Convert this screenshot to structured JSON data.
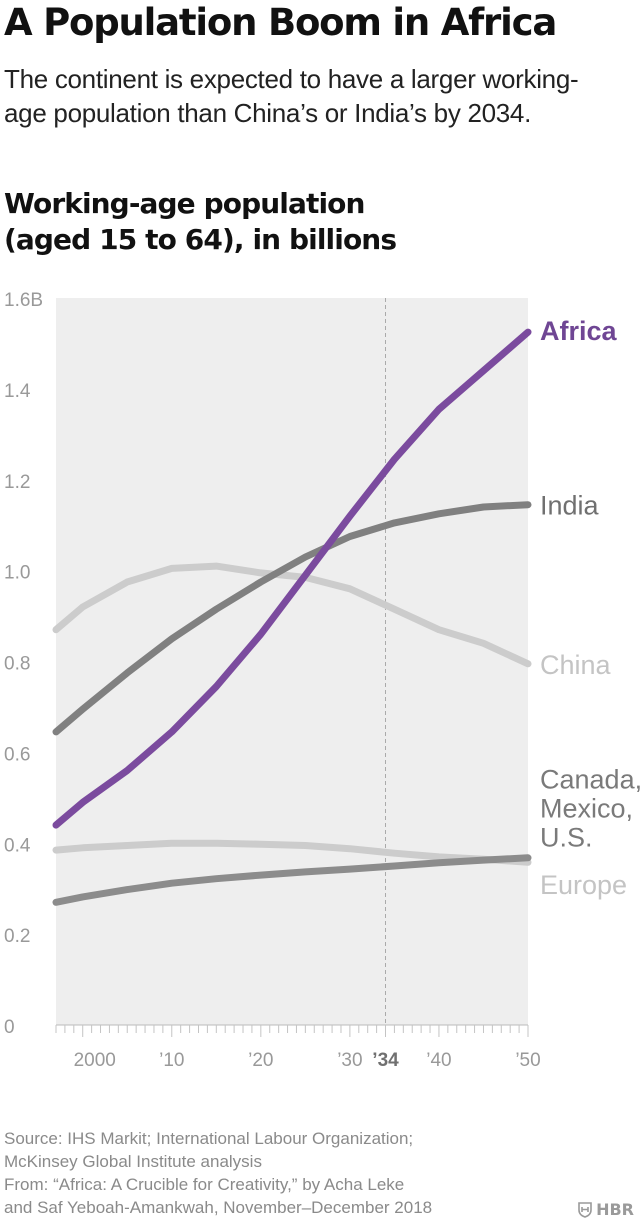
{
  "headline": "A Population Boom in Africa",
  "subhead_lines": [
    "The continent is expected to have a larger working-",
    "age population than China’s or India’s by 2034."
  ],
  "chart_title_lines": [
    "Working-age population",
    "(aged 15 to 64), in billions"
  ],
  "source_lines": [
    "Source: IHS Markit; International Labour Organization;",
    "McKinsey Global Institute analysis",
    "From: “Africa: A Crucible for Creativity,” by Acha Leke",
    "and Saf Yeboah-Amankwah, November–December 2018"
  ],
  "logo_text": "HBR",
  "chart_data": {
    "type": "line",
    "xlim": [
      1997,
      2050
    ],
    "ylim": [
      0,
      1.6
    ],
    "y_ticks": [
      {
        "value": 0,
        "label": "0"
      },
      {
        "value": 0.2,
        "label": "0.2"
      },
      {
        "value": 0.4,
        "label": "0.4"
      },
      {
        "value": 0.6,
        "label": "0.6"
      },
      {
        "value": 0.8,
        "label": "0.8"
      },
      {
        "value": 1.0,
        "label": "1.0"
      },
      {
        "value": 1.2,
        "label": "1.2"
      },
      {
        "value": 1.4,
        "label": "1.4"
      },
      {
        "value": 1.6,
        "label": "1.6B"
      }
    ],
    "x_ticks": [
      {
        "value": 2000,
        "label": "2000",
        "bold": false
      },
      {
        "value": 2010,
        "label": "’10",
        "bold": false
      },
      {
        "value": 2020,
        "label": "’20",
        "bold": false
      },
      {
        "value": 2030,
        "label": "’30",
        "bold": false
      },
      {
        "value": 2034,
        "label": "’34",
        "bold": true
      },
      {
        "value": 2040,
        "label": "’40",
        "bold": false
      },
      {
        "value": 2050,
        "label": "’50",
        "bold": false
      }
    ],
    "reference_line_x": 2034,
    "grid": false,
    "colors": {
      "plot_bg": "#eeeeee",
      "axis_text": "#999999",
      "reference_line": "#aaaaaa"
    },
    "series": [
      {
        "label_lines": [
          "Europe"
        ],
        "color": "#cccccc",
        "label_color": "#c4c4c4",
        "label_bold": false,
        "x": [
          1997,
          2000,
          2005,
          2010,
          2015,
          2020,
          2025,
          2030,
          2035,
          2040,
          2045,
          2050
        ],
        "y": [
          0.385,
          0.39,
          0.395,
          0.4,
          0.4,
          0.398,
          0.395,
          0.388,
          0.378,
          0.37,
          0.365,
          0.358
        ]
      },
      {
        "label_lines": [
          "China"
        ],
        "color": "#cccccc",
        "label_color": "#c4c4c4",
        "label_bold": false,
        "x": [
          1997,
          2000,
          2005,
          2010,
          2015,
          2020,
          2025,
          2030,
          2035,
          2040,
          2045,
          2050
        ],
        "y": [
          0.87,
          0.92,
          0.975,
          1.005,
          1.01,
          0.995,
          0.985,
          0.96,
          0.915,
          0.87,
          0.84,
          0.795
        ]
      },
      {
        "label_lines": [
          "Canada,",
          "Mexico,",
          "U.S."
        ],
        "color": "#8c8c8c",
        "label_color": "#7a7a7a",
        "label_bold": false,
        "x": [
          1997,
          2000,
          2005,
          2010,
          2015,
          2020,
          2025,
          2030,
          2035,
          2040,
          2045,
          2050
        ],
        "y": [
          0.27,
          0.282,
          0.298,
          0.312,
          0.322,
          0.33,
          0.337,
          0.343,
          0.35,
          0.357,
          0.363,
          0.368
        ]
      },
      {
        "label_lines": [
          "India"
        ],
        "color": "#808080",
        "label_color": "#707070",
        "label_bold": false,
        "x": [
          1997,
          2000,
          2005,
          2010,
          2015,
          2020,
          2025,
          2030,
          2035,
          2040,
          2045,
          2050
        ],
        "y": [
          0.645,
          0.695,
          0.775,
          0.85,
          0.915,
          0.975,
          1.03,
          1.075,
          1.105,
          1.125,
          1.14,
          1.145
        ]
      },
      {
        "label_lines": [
          "Africa"
        ],
        "color": "#7b4b9e",
        "label_color": "#6f4694",
        "label_bold": true,
        "x": [
          1997,
          2000,
          2005,
          2010,
          2015,
          2020,
          2025,
          2030,
          2035,
          2040,
          2045,
          2050
        ],
        "y": [
          0.44,
          0.49,
          0.56,
          0.645,
          0.745,
          0.86,
          0.99,
          1.12,
          1.245,
          1.355,
          1.44,
          1.525
        ]
      }
    ]
  }
}
